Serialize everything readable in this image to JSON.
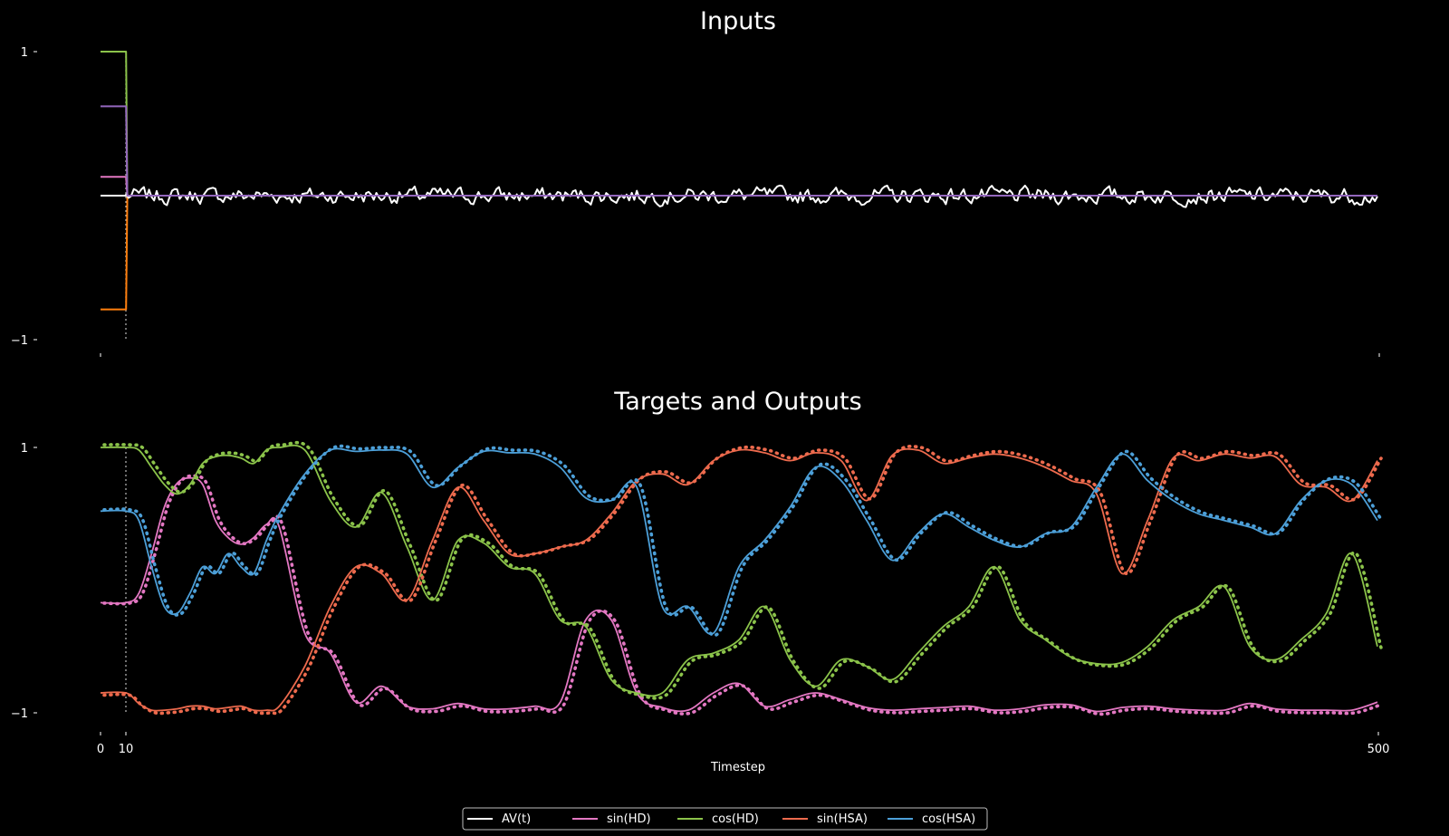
{
  "chart_data": [
    {
      "type": "line",
      "title": "Inputs",
      "xlim": [
        0,
        500
      ],
      "ylim": [
        -1,
        1
      ],
      "yticks": [
        1,
        -1
      ],
      "ytick_labels": [
        "1",
        "−1"
      ],
      "vline_x": 10,
      "series": [
        {
          "key": "av",
          "color": "#ffffff",
          "segments": [
            {
              "x": [
                0,
                10
              ],
              "y": [
                0,
                0
              ]
            },
            {
              "noise": true,
              "start": 10,
              "end": 500,
              "amp": 0.08,
              "seed": 7
            }
          ]
        },
        {
          "key": "sin_hd",
          "color": "#e377c2",
          "segments": [
            {
              "x": [
                0,
                10,
                10.5,
                500
              ],
              "y": [
                0.13,
                0.13,
                0,
                0
              ]
            }
          ]
        },
        {
          "key": "cos_hd",
          "color": "#8bc34a",
          "segments": [
            {
              "x": [
                0,
                10,
                10.5,
                500
              ],
              "y": [
                1,
                1,
                0,
                0
              ]
            }
          ]
        },
        {
          "key": "sin_hsa",
          "color": "#ff7f0e",
          "segments": [
            {
              "x": [
                0,
                10,
                10.5,
                500
              ],
              "y": [
                -0.79,
                -0.79,
                0,
                0
              ]
            }
          ]
        },
        {
          "key": "cos_hsa",
          "color": "#9467bd",
          "segments": [
            {
              "x": [
                0,
                10,
                10.5,
                500
              ],
              "y": [
                0.62,
                0.62,
                0,
                0
              ]
            }
          ]
        }
      ]
    },
    {
      "type": "line",
      "title": "Targets and Outputs",
      "xlabel": "Timestep",
      "xlim": [
        0,
        500
      ],
      "ylim": [
        -1,
        1
      ],
      "yticks": [
        1,
        -1
      ],
      "ytick_labels": [
        "1",
        "−1"
      ],
      "xticks": [
        0,
        10,
        500
      ],
      "xtick_labels": [
        "0",
        "10",
        "500"
      ],
      "vline_x": 10,
      "series": [
        {
          "key": "sin_hd",
          "name": "sin(HD)",
          "color": "#e377c2",
          "x": [
            0,
            10,
            15,
            20,
            25,
            30,
            35,
            40,
            45,
            50,
            55,
            60,
            65,
            70,
            80,
            90,
            100,
            110,
            120,
            130,
            140,
            150,
            160,
            170,
            180,
            190,
            200,
            210,
            220,
            230,
            240,
            250,
            260,
            270,
            280,
            290,
            300,
            310,
            320,
            330,
            340,
            350,
            360,
            370,
            380,
            390,
            400,
            410,
            420,
            430,
            440,
            450,
            460,
            470,
            480,
            490,
            500
          ],
          "y": [
            -0.17,
            -0.17,
            -0.1,
            0.2,
            0.55,
            0.73,
            0.77,
            0.72,
            0.45,
            0.32,
            0.27,
            0.32,
            0.42,
            0.4,
            -0.4,
            -0.55,
            -0.92,
            -0.8,
            -0.95,
            -0.97,
            -0.93,
            -0.97,
            -0.97,
            -0.95,
            -0.92,
            -0.3,
            -0.3,
            -0.85,
            -0.96,
            -0.98,
            -0.85,
            -0.78,
            -0.95,
            -0.9,
            -0.85,
            -0.9,
            -0.96,
            -0.98,
            -0.97,
            -0.96,
            -0.95,
            -0.98,
            -0.97,
            -0.94,
            -0.94,
            -0.99,
            -0.96,
            -0.95,
            -0.97,
            -0.98,
            -0.98,
            -0.93,
            -0.97,
            -0.98,
            -0.98,
            -0.98,
            -0.92
          ]
        },
        {
          "key": "cos_hd",
          "name": "cos(HD)",
          "color": "#8bc34a",
          "x": [
            0,
            10,
            15,
            20,
            25,
            30,
            35,
            40,
            45,
            50,
            55,
            60,
            65,
            70,
            80,
            90,
            100,
            110,
            120,
            130,
            140,
            150,
            160,
            170,
            180,
            190,
            200,
            210,
            220,
            230,
            240,
            250,
            260,
            270,
            280,
            290,
            300,
            310,
            320,
            330,
            340,
            350,
            360,
            370,
            380,
            390,
            400,
            410,
            420,
            430,
            440,
            450,
            460,
            470,
            480,
            490,
            500
          ],
          "y": [
            1,
            1,
            0.98,
            0.85,
            0.72,
            0.65,
            0.72,
            0.88,
            0.93,
            0.94,
            0.92,
            0.88,
            0.98,
            1,
            0.98,
            0.6,
            0.4,
            0.66,
            0.25,
            -0.15,
            0.3,
            0.28,
            0.1,
            0.05,
            -0.3,
            -0.35,
            -0.75,
            -0.85,
            -0.85,
            -0.6,
            -0.55,
            -0.45,
            -0.2,
            -0.6,
            -0.8,
            -0.6,
            -0.65,
            -0.75,
            -0.55,
            -0.35,
            -0.2,
            0.1,
            -0.3,
            -0.45,
            -0.58,
            -0.63,
            -0.62,
            -0.5,
            -0.3,
            -0.2,
            -0.05,
            -0.5,
            -0.6,
            -0.45,
            -0.25,
            0.2,
            -0.5
          ]
        },
        {
          "key": "sin_hsa",
          "name": "sin(HSA)",
          "color": "#ed6a4d",
          "x": [
            0,
            10,
            15,
            20,
            25,
            30,
            35,
            40,
            45,
            50,
            55,
            60,
            65,
            70,
            80,
            90,
            100,
            110,
            120,
            130,
            140,
            150,
            160,
            170,
            180,
            190,
            200,
            210,
            220,
            230,
            240,
            250,
            260,
            270,
            280,
            290,
            300,
            310,
            320,
            330,
            340,
            350,
            360,
            370,
            380,
            390,
            400,
            410,
            420,
            430,
            440,
            450,
            460,
            470,
            480,
            490,
            500
          ],
          "y": [
            -0.85,
            -0.85,
            -0.93,
            -0.98,
            -0.98,
            -0.97,
            -0.95,
            -0.95,
            -0.97,
            -0.96,
            -0.95,
            -0.98,
            -0.98,
            -0.95,
            -0.65,
            -0.2,
            0.1,
            0.05,
            -0.15,
            0.3,
            0.7,
            0.45,
            0.2,
            0.2,
            0.25,
            0.3,
            0.5,
            0.75,
            0.8,
            0.72,
            0.9,
            0.98,
            0.96,
            0.9,
            0.96,
            0.9,
            0.6,
            0.94,
            0.98,
            0.88,
            0.92,
            0.95,
            0.92,
            0.85,
            0.75,
            0.65,
            0.05,
            0.45,
            0.92,
            0.9,
            0.95,
            0.92,
            0.93,
            0.72,
            0.7,
            0.6,
            0.9
          ]
        },
        {
          "key": "cos_hsa",
          "name": "cos(HSA)",
          "color": "#4c9fd8",
          "x": [
            0,
            10,
            15,
            20,
            25,
            30,
            35,
            40,
            45,
            50,
            55,
            60,
            65,
            70,
            80,
            90,
            100,
            110,
            120,
            130,
            140,
            150,
            160,
            170,
            180,
            190,
            200,
            210,
            220,
            230,
            240,
            250,
            260,
            270,
            280,
            290,
            300,
            310,
            320,
            330,
            340,
            350,
            360,
            370,
            380,
            390,
            400,
            410,
            420,
            430,
            440,
            450,
            460,
            470,
            480,
            490,
            500
          ],
          "y": [
            0.52,
            0.52,
            0.45,
            0.1,
            -0.2,
            -0.25,
            -0.1,
            0.1,
            0.05,
            0.2,
            0.1,
            0.05,
            0.3,
            0.5,
            0.8,
            0.98,
            0.97,
            0.98,
            0.95,
            0.7,
            0.85,
            0.97,
            0.96,
            0.95,
            0.85,
            0.62,
            0.6,
            0.7,
            -0.2,
            -0.2,
            -0.4,
            0.1,
            0.3,
            0.55,
            0.85,
            0.75,
            0.45,
            0.15,
            0.35,
            0.5,
            0.4,
            0.3,
            0.25,
            0.35,
            0.4,
            0.7,
            0.95,
            0.75,
            0.6,
            0.5,
            0.45,
            0.4,
            0.35,
            0.6,
            0.75,
            0.72,
            0.45
          ]
        }
      ]
    }
  ],
  "legend": {
    "placement": "bottom-center",
    "items": [
      {
        "label": "AV(t)",
        "color": "#ffffff"
      },
      {
        "label": "sin(HD)",
        "color": "#e377c2"
      },
      {
        "label": "cos(HD)",
        "color": "#8bc34a"
      },
      {
        "label": "sin(HSA)",
        "color": "#ed6a4d"
      },
      {
        "label": "cos(HSA)",
        "color": "#4c9fd8"
      }
    ]
  }
}
